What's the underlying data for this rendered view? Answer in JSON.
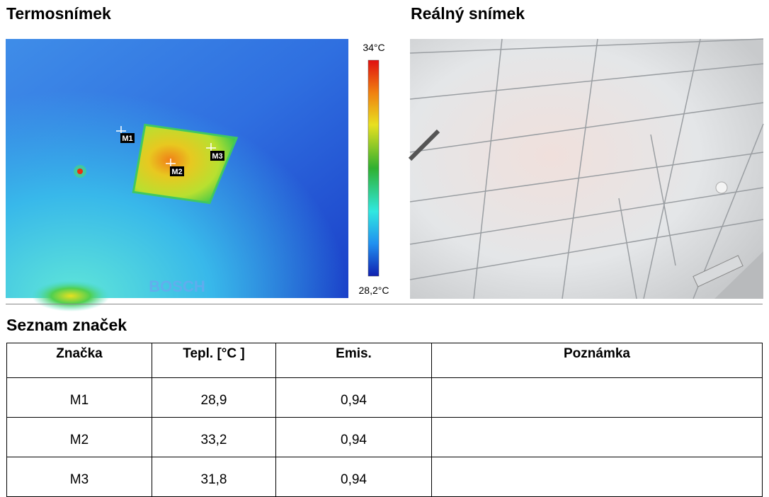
{
  "thermal": {
    "title": "Termosnímek",
    "scale_max": "34°C",
    "scale_min": "28,2°C",
    "watermark": "BOSCH",
    "markers": [
      "M1",
      "M2",
      "M3"
    ]
  },
  "photo": {
    "title": "Reálný snímek"
  },
  "marker_list": {
    "title": "Seznam značek",
    "table": {
      "headers": [
        "Značka",
        "Tepl. [°C ]",
        "Emis.",
        "Poznámka"
      ],
      "rows": [
        [
          "M1",
          "28,9",
          "0,94"
        ],
        [
          "M2",
          "33,2",
          "0,94"
        ],
        [
          "M3",
          "31,8",
          "0,94"
        ]
      ]
    }
  }
}
